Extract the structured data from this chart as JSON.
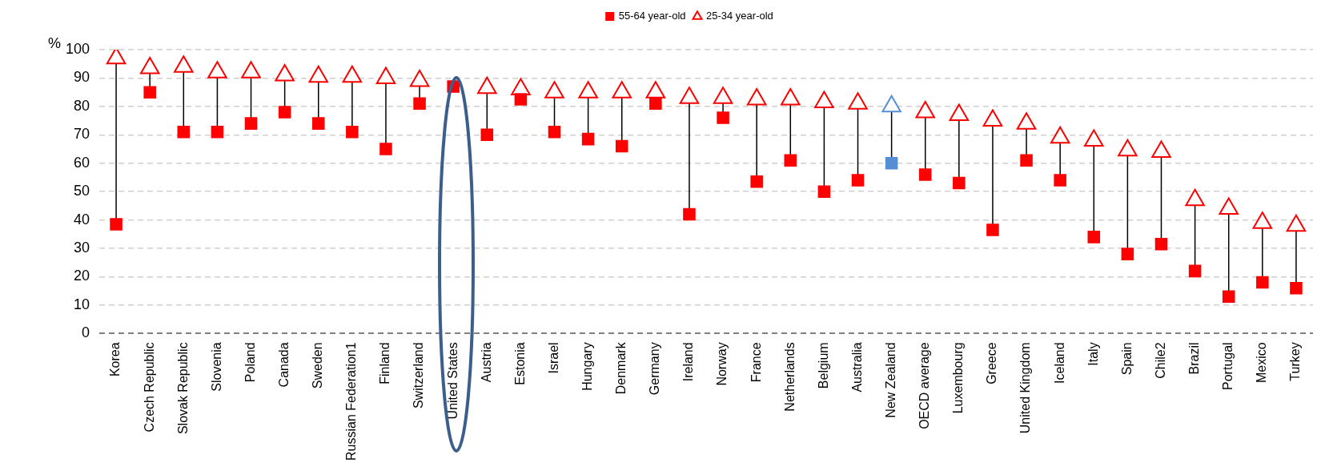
{
  "chart_data": {
    "type": "scatter",
    "ylabel": "%",
    "categories": [
      "Korea",
      "Czech Republic",
      "Slovak Republic",
      "Slovenia",
      "Poland",
      "Canada",
      "Sweden",
      "Russian Federation1",
      "Finland",
      "Switzerland",
      "United States",
      "Austria",
      "Estonia",
      "Israel",
      "Hungary",
      "Denmark",
      "Germany",
      "Ireland",
      "Norway",
      "France",
      "Netherlands",
      "Belgium",
      "Australia",
      "New Zealand",
      "OECD average",
      "Luxembourg",
      "Greece",
      "United Kingdom",
      "Iceland",
      "Italy",
      "Spain",
      "Chile2",
      "Brazil",
      "Portugal",
      "Mexico",
      "Turkey"
    ],
    "series": [
      {
        "name": "55-64 year-old",
        "marker": "square",
        "color": "#ff0000",
        "colors": [
          "#ff0000",
          "#ff0000",
          "#ff0000",
          "#ff0000",
          "#ff0000",
          "#ff0000",
          "#ff0000",
          "#ff0000",
          "#ff0000",
          "#ff0000",
          "#ff0000",
          "#ff0000",
          "#ff0000",
          "#ff0000",
          "#ff0000",
          "#ff0000",
          "#ff0000",
          "#ff0000",
          "#ff0000",
          "#ff0000",
          "#ff0000",
          "#ff0000",
          "#ff0000",
          "#558ed5",
          "#ff0000",
          "#ff0000",
          "#ff0000",
          "#ff0000",
          "#ff0000",
          "#ff0000",
          "#ff0000",
          "#ff0000",
          "#ff0000",
          "#ff0000",
          "#ff0000",
          "#ff0000"
        ],
        "values": [
          38.5,
          85,
          71,
          71,
          74,
          78,
          74,
          71,
          65,
          81,
          87,
          70,
          82.5,
          71,
          68.5,
          66,
          81,
          42,
          76,
          53.5,
          61,
          50,
          54,
          60,
          56,
          53,
          36.5,
          61,
          54,
          34,
          28,
          31.5,
          22,
          13,
          18,
          16
        ]
      },
      {
        "name": "25-34 year-old",
        "marker": "triangle",
        "color": "#ff0000",
        "colors": [
          "#ff0000",
          "#ff0000",
          "#ff0000",
          "#ff0000",
          "#ff0000",
          "#ff0000",
          "#ff0000",
          "#ff0000",
          "#ff0000",
          "#ff0000",
          "#ff0000",
          "#ff0000",
          "#ff0000",
          "#ff0000",
          "#ff0000",
          "#ff0000",
          "#ff0000",
          "#ff0000",
          "#ff0000",
          "#ff0000",
          "#ff0000",
          "#ff0000",
          "#ff0000",
          "#558ed5",
          "#ff0000",
          "#ff0000",
          "#ff0000",
          "#ff0000",
          "#ff0000",
          "#ff0000",
          "#ff0000",
          "#ff0000",
          "#ff0000",
          "#ff0000",
          "#ff0000",
          "#ff0000"
        ],
        "values": [
          97,
          93.5,
          94,
          92,
          92,
          91,
          90.5,
          90.5,
          90,
          89,
          null,
          86.5,
          86,
          85,
          85,
          85,
          85,
          83,
          83,
          82.5,
          82.5,
          81.5,
          81,
          80,
          78,
          77,
          75,
          74,
          69,
          68,
          64.5,
          64,
          47,
          44,
          39,
          38
        ]
      }
    ],
    "ylim": [
      0,
      100
    ],
    "yticks": [
      0,
      10,
      20,
      30,
      40,
      50,
      60,
      70,
      80,
      90,
      100
    ],
    "grid": "y",
    "legend": "top"
  }
}
